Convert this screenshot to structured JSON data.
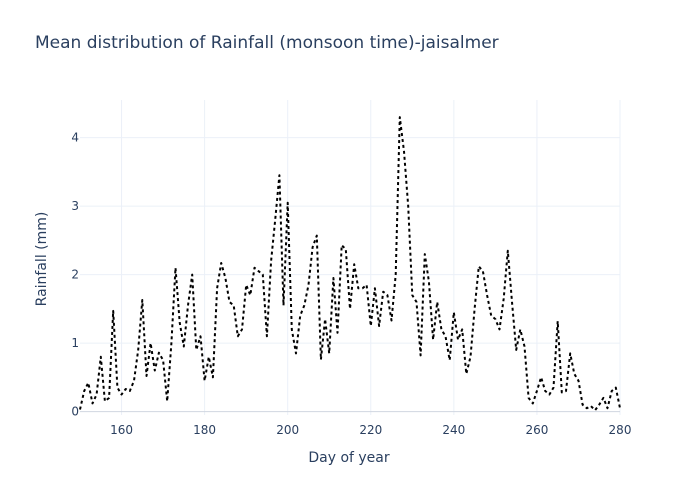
{
  "chart_data": {
    "type": "line",
    "title": "Mean distribution of Rainfall (monsoon time)-jaisalmer",
    "xlabel": "Day of year",
    "ylabel": "Rainfall (mm)",
    "xlim": [
      150,
      280
    ],
    "ylim": [
      -0.05,
      4.55
    ],
    "xticks": [
      160,
      180,
      200,
      220,
      240,
      260,
      280
    ],
    "yticks": [
      0,
      1,
      2,
      3,
      4
    ],
    "grid": true,
    "line_style": "dotted",
    "line_color": "#000000",
    "x": [
      150,
      151,
      152,
      153,
      154,
      155,
      156,
      157,
      158,
      159,
      160,
      161,
      162,
      163,
      164,
      165,
      166,
      167,
      168,
      169,
      170,
      171,
      172,
      173,
      174,
      175,
      176,
      177,
      178,
      179,
      180,
      181,
      182,
      183,
      184,
      185,
      186,
      187,
      188,
      189,
      190,
      191,
      192,
      193,
      194,
      195,
      196,
      197,
      198,
      199,
      200,
      201,
      202,
      203,
      204,
      205,
      206,
      207,
      208,
      209,
      210,
      211,
      212,
      213,
      214,
      215,
      216,
      217,
      218,
      219,
      220,
      221,
      222,
      223,
      224,
      225,
      226,
      227,
      228,
      229,
      230,
      231,
      232,
      233,
      234,
      235,
      236,
      237,
      238,
      239,
      240,
      241,
      242,
      243,
      244,
      245,
      246,
      247,
      248,
      249,
      250,
      251,
      252,
      253,
      254,
      255,
      256,
      257,
      258,
      259,
      260,
      261,
      262,
      263,
      264,
      265,
      266,
      267,
      268,
      269,
      270,
      271,
      272,
      273,
      274,
      275,
      276,
      277,
      278,
      279,
      280
    ],
    "y": [
      0.03,
      0.3,
      0.42,
      0.12,
      0.25,
      0.8,
      0.15,
      0.2,
      1.47,
      0.35,
      0.25,
      0.33,
      0.3,
      0.45,
      0.9,
      1.63,
      0.52,
      1.0,
      0.6,
      0.86,
      0.75,
      0.15,
      1.0,
      2.1,
      1.3,
      0.95,
      1.55,
      2.0,
      0.9,
      1.1,
      0.45,
      0.8,
      0.5,
      1.8,
      2.17,
      1.95,
      1.6,
      1.55,
      1.1,
      1.2,
      1.85,
      1.7,
      2.1,
      2.05,
      2.0,
      1.1,
      2.2,
      2.8,
      3.45,
      1.55,
      3.05,
      1.2,
      0.85,
      1.4,
      1.55,
      1.85,
      2.4,
      2.57,
      0.76,
      1.35,
      0.85,
      1.95,
      1.15,
      2.43,
      2.37,
      1.5,
      2.15,
      1.8,
      1.8,
      1.85,
      1.25,
      1.8,
      1.25,
      1.75,
      1.7,
      1.33,
      2.0,
      4.3,
      3.8,
      3.0,
      1.7,
      1.6,
      0.82,
      2.3,
      1.9,
      1.05,
      1.6,
      1.2,
      1.1,
      0.75,
      1.45,
      1.05,
      1.2,
      0.55,
      0.8,
      1.5,
      2.12,
      2.05,
      1.7,
      1.4,
      1.35,
      1.2,
      1.65,
      2.35,
      1.6,
      0.9,
      1.2,
      0.95,
      0.2,
      0.12,
      0.3,
      0.5,
      0.3,
      0.25,
      0.35,
      1.32,
      0.28,
      0.3,
      0.85,
      0.55,
      0.45,
      0.1,
      0.05,
      0.08,
      0.02,
      0.1,
      0.2,
      0.05,
      0.3,
      0.35,
      0.05
    ]
  }
}
